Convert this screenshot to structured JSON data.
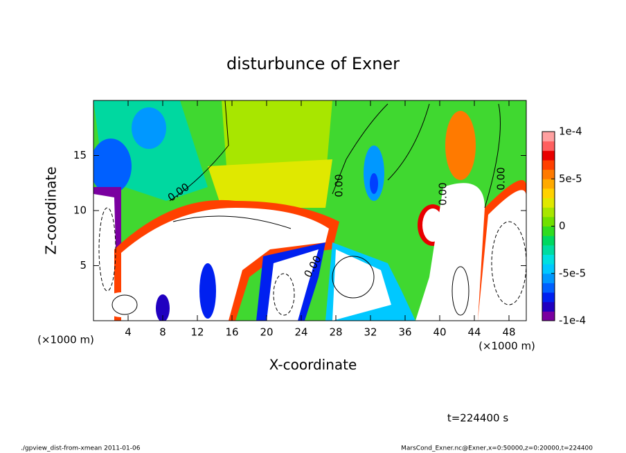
{
  "chart_data": {
    "type": "contour",
    "title": "disturbunce of Exner",
    "xlabel": "X-coordinate",
    "ylabel": "Z-coordinate",
    "x_unit_label": "(×1000 m)",
    "xlim": [
      0,
      50
    ],
    "xticks": [
      4,
      8,
      12,
      16,
      20,
      24,
      28,
      32,
      36,
      40,
      44,
      48
    ],
    "ylim": [
      0,
      20
    ],
    "yticks": [
      5,
      10,
      15
    ],
    "contour_labels": [
      "0.00",
      "0.00",
      "0.00",
      "0.00",
      "0.00"
    ],
    "colorbar": {
      "lim": [
        -0.0001,
        0.0001
      ],
      "ticks": [
        {
          "value": 0.0001,
          "label": "1e-4"
        },
        {
          "value": 5e-05,
          "label": "5e-5"
        },
        {
          "value": 0,
          "label": "0"
        },
        {
          "value": -5e-05,
          "label": "-5e-5"
        },
        {
          "value": -0.0001,
          "label": "-1e-4"
        }
      ],
      "colors": [
        "#7a00a0",
        "#2000c0",
        "#0020f0",
        "#0060ff",
        "#0098ff",
        "#00c8ff",
        "#00e0e0",
        "#00dca0",
        "#00d860",
        "#30dc20",
        "#70e000",
        "#a8e600",
        "#e0e800",
        "#ffd200",
        "#ffaa00",
        "#ff7a00",
        "#ff4000",
        "#e80000",
        "#ff6060",
        "#ffa0a0"
      ]
    },
    "annotation": "t=224400 s",
    "footer_left": "./gpview_dist-from-xmean  2011-01-06",
    "footer_right": "MarsCond_Exner.nc@Exner,x=0:50000,z=0:20000,t=224400"
  }
}
